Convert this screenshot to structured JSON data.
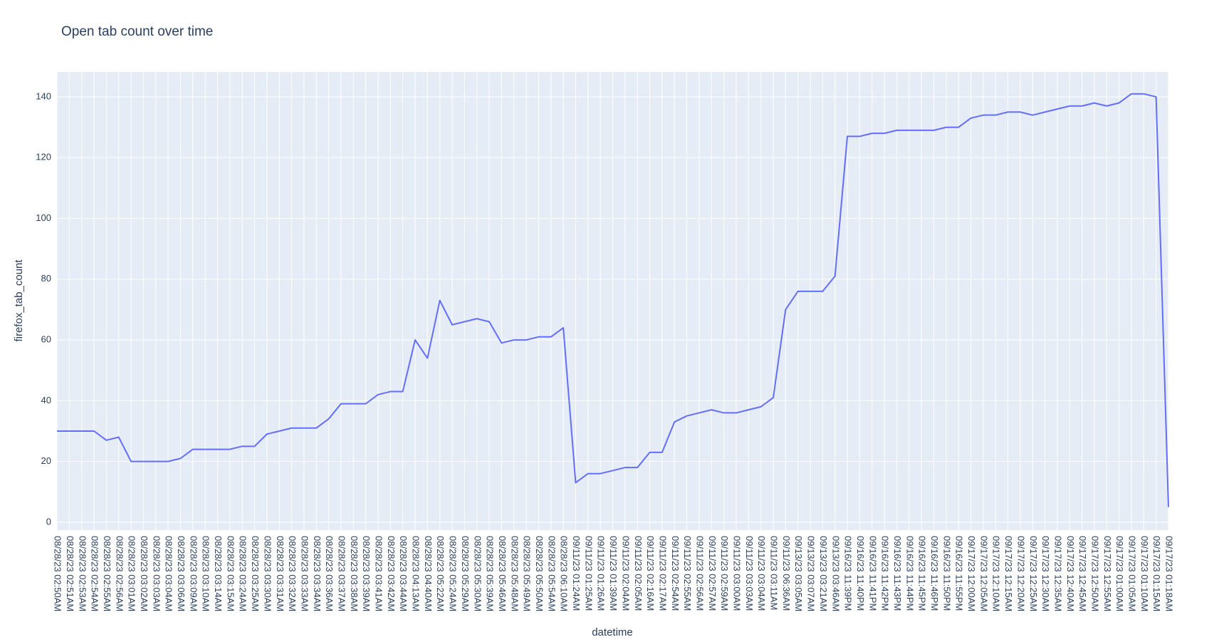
{
  "chart_data": {
    "type": "line",
    "title": "Open tab count over time",
    "x_label": "datetime",
    "y_label": "firefox_tab_count",
    "categories": [
      "08/28/23 02:50AM",
      "08/28/23 02:51AM",
      "08/28/23 02:53AM",
      "08/28/23 02:54AM",
      "08/28/23 02:55AM",
      "08/28/23 02:56AM",
      "08/28/23 03:01AM",
      "08/28/23 03:02AM",
      "08/28/23 03:03AM",
      "08/28/23 03:04AM",
      "08/28/23 03:06AM",
      "08/28/23 03:09AM",
      "08/28/23 03:10AM",
      "08/28/23 03:14AM",
      "08/28/23 03:15AM",
      "08/28/23 03:24AM",
      "08/28/23 03:25AM",
      "08/28/23 03:30AM",
      "08/28/23 03:31AM",
      "08/28/23 03:32AM",
      "08/28/23 03:33AM",
      "08/28/23 03:34AM",
      "08/28/23 03:36AM",
      "08/28/23 03:37AM",
      "08/28/23 03:38AM",
      "08/28/23 03:39AM",
      "08/28/23 03:41AM",
      "08/28/23 03:42AM",
      "08/28/23 03:44AM",
      "08/28/23 04:13AM",
      "08/28/23 04:40AM",
      "08/28/23 05:22AM",
      "08/28/23 05:24AM",
      "08/28/23 05:29AM",
      "08/28/23 05:30AM",
      "08/28/23 05:39AM",
      "08/28/23 05:46AM",
      "08/28/23 05:48AM",
      "08/28/23 05:49AM",
      "08/28/23 05:50AM",
      "08/28/23 05:54AM",
      "08/28/23 06:10AM",
      "09/11/23 01:24AM",
      "09/11/23 01:25AM",
      "09/11/23 01:26AM",
      "09/11/23 01:39AM",
      "09/11/23 02:04AM",
      "09/11/23 02:05AM",
      "09/11/23 02:16AM",
      "09/11/23 02:17AM",
      "09/11/23 02:54AM",
      "09/11/23 02:55AM",
      "09/11/23 02:56AM",
      "09/11/23 02:57AM",
      "09/11/23 02:59AM",
      "09/11/23 03:00AM",
      "09/11/23 03:03AM",
      "09/11/23 03:04AM",
      "09/11/23 03:11AM",
      "09/11/23 06:36AM",
      "09/13/23 03:05AM",
      "09/13/23 03:07AM",
      "09/13/23 03:21AM",
      "09/13/23 03:46AM",
      "09/16/23 11:39PM",
      "09/16/23 11:40PM",
      "09/16/23 11:41PM",
      "09/16/23 11:42PM",
      "09/16/23 11:43PM",
      "09/16/23 11:44PM",
      "09/16/23 11:45PM",
      "09/16/23 11:46PM",
      "09/16/23 11:50PM",
      "09/16/23 11:55PM",
      "09/17/23 12:00AM",
      "09/17/23 12:05AM",
      "09/17/23 12:10AM",
      "09/17/23 12:15AM",
      "09/17/23 12:20AM",
      "09/17/23 12:25AM",
      "09/17/23 12:30AM",
      "09/17/23 12:35AM",
      "09/17/23 12:40AM",
      "09/17/23 12:45AM",
      "09/17/23 12:50AM",
      "09/17/23 12:55AM",
      "09/17/23 01:00AM",
      "09/17/23 01:05AM",
      "09/17/23 01:10AM",
      "09/17/23 01:15AM",
      "09/17/23 01:18AM"
    ],
    "values": [
      30,
      30,
      30,
      30,
      27,
      28,
      20,
      20,
      20,
      20,
      21,
      24,
      24,
      24,
      24,
      25,
      25,
      29,
      30,
      31,
      31,
      31,
      34,
      39,
      39,
      39,
      42,
      43,
      43,
      60,
      54,
      73,
      65,
      66,
      67,
      66,
      59,
      60,
      60,
      61,
      61,
      64,
      13,
      16,
      16,
      17,
      18,
      18,
      23,
      23,
      33,
      35,
      36,
      37,
      36,
      36,
      37,
      38,
      41,
      70,
      76,
      76,
      76,
      81,
      127,
      127,
      128,
      128,
      129,
      129,
      129,
      129,
      130,
      130,
      133,
      134,
      134,
      135,
      135,
      134,
      135,
      136,
      137,
      137,
      138,
      137,
      138,
      141,
      141,
      140,
      5
    ],
    "color": "#636efa",
    "ylim": [
      -2.6,
      148.2
    ],
    "yticks": [
      0,
      20,
      40,
      60,
      80,
      100,
      120,
      140
    ],
    "grid": true
  }
}
